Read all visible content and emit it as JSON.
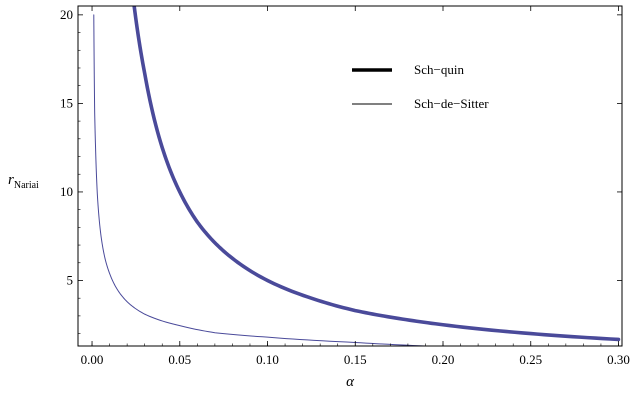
{
  "chart_data": {
    "type": "line",
    "title": "",
    "xlabel": "α",
    "ylabel": "r",
    "ylabel_sub": "Nariai",
    "xlim": [
      -0.008,
      0.302
    ],
    "ylim": [
      1.3,
      20.5
    ],
    "x_ticks": [
      0.0,
      0.05,
      0.1,
      0.15,
      0.2,
      0.25,
      0.3
    ],
    "x_tick_labels": [
      "0.00",
      "0.05",
      "0.10",
      "0.15",
      "0.20",
      "0.25",
      "0.30"
    ],
    "y_ticks": [
      5,
      10,
      15,
      20
    ],
    "y_tick_labels": [
      "5",
      "10",
      "15",
      "20"
    ],
    "grid": false,
    "legend_position": "top-right",
    "colors": {
      "series": "#4a4a9a",
      "legend_line": "#000000",
      "frame": "#000000"
    },
    "series": [
      {
        "name": "Sch−quin",
        "line_width": "thick",
        "x": [
          0.024,
          0.03,
          0.04,
          0.05,
          0.06,
          0.08,
          0.1,
          0.125,
          0.15,
          0.175,
          0.2,
          0.25,
          0.3
        ],
        "y": [
          20.5,
          16.7,
          12.5,
          10.0,
          8.3,
          6.25,
          5.0,
          4.0,
          3.3,
          2.85,
          2.5,
          2.0,
          1.67
        ]
      },
      {
        "name": "Sch−de−Sitter",
        "line_width": "thin",
        "x": [
          0.001,
          0.0015,
          0.002,
          0.003,
          0.005,
          0.0075,
          0.01,
          0.015,
          0.02,
          0.03,
          0.05,
          0.07,
          0.1,
          0.15,
          0.19
        ],
        "y": [
          20.0,
          14.5,
          12.5,
          9.9,
          7.6,
          6.2,
          5.4,
          4.4,
          3.8,
          3.1,
          2.45,
          2.05,
          1.8,
          1.5,
          1.3
        ]
      }
    ]
  }
}
